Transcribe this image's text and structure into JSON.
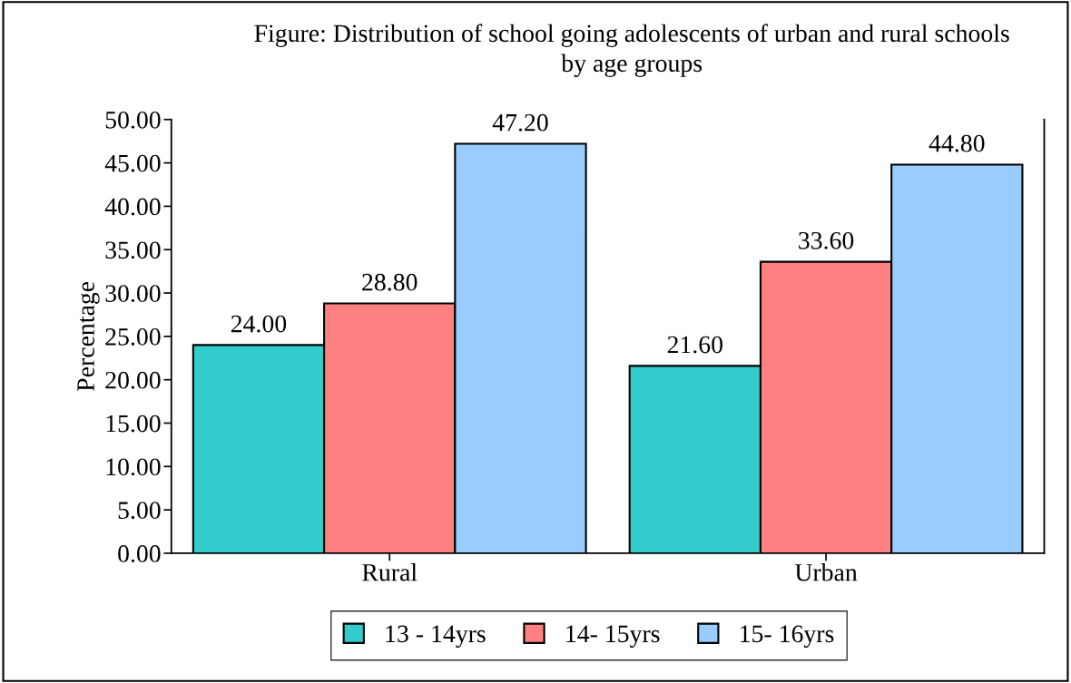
{
  "chart_data": {
    "type": "bar",
    "title": "Figure: Distribution of school going adolescents of urban and rural schools\nby age groups",
    "ylabel": "Percentage",
    "categories": [
      "Rural",
      "Urban"
    ],
    "series": [
      {
        "name": "13 - 14yrs",
        "color": "#33cccc",
        "values": [
          24.0,
          21.6
        ],
        "value_labels": [
          "24.00",
          "21.60"
        ]
      },
      {
        "name": "14- 15yrs",
        "color": "#ff8080",
        "values": [
          28.8,
          33.6
        ],
        "value_labels": [
          "28.80",
          "33.60"
        ]
      },
      {
        "name": "15- 16yrs",
        "color": "#99ccff",
        "values": [
          47.2,
          44.8
        ],
        "value_labels": [
          "47.20",
          "44.80"
        ]
      }
    ],
    "ylim": [
      0,
      50
    ],
    "yticks": [
      {
        "value": 0,
        "label": "0.00"
      },
      {
        "value": 5,
        "label": "5.00"
      },
      {
        "value": 10,
        "label": "10.00"
      },
      {
        "value": 15,
        "label": "15.00"
      },
      {
        "value": 20,
        "label": "20.00"
      },
      {
        "value": 25,
        "label": "25.00"
      },
      {
        "value": 30,
        "label": "30.00"
      },
      {
        "value": 35,
        "label": "35.00"
      },
      {
        "value": 40,
        "label": "40.00"
      },
      {
        "value": 45,
        "label": "45.00"
      },
      {
        "value": 50,
        "label": "50.00"
      }
    ],
    "grid": false,
    "legend": "bottom"
  }
}
